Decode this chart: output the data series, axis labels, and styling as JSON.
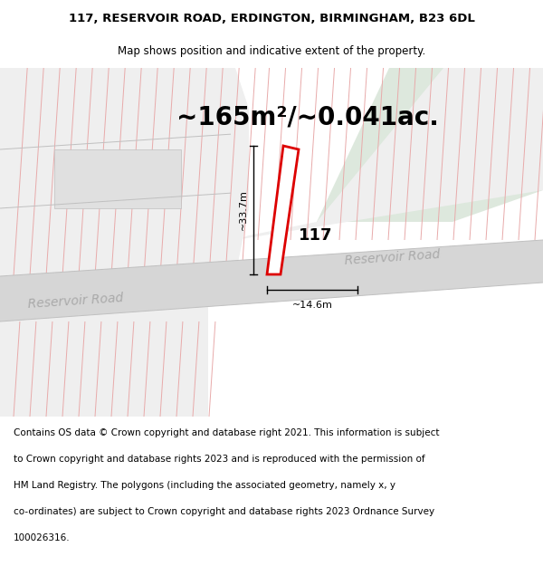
{
  "title_line1": "117, RESERVOIR ROAD, ERDINGTON, BIRMINGHAM, B23 6DL",
  "title_line2": "Map shows position and indicative extent of the property.",
  "area_text": "~165m²/~0.041ac.",
  "property_number": "117",
  "dim_horizontal": "~14.6m",
  "dim_vertical": "~33.7m",
  "road_label1": "Reservoir Road",
  "road_label2": "Reservoir Road",
  "footer_lines": [
    "Contains OS data © Crown copyright and database right 2021. This information is subject",
    "to Crown copyright and database rights 2023 and is reproduced with the permission of",
    "HM Land Registry. The polygons (including the associated geometry, namely x, y",
    "co-ordinates) are subject to Crown copyright and database rights 2023 Ordnance Survey",
    "100026316."
  ],
  "map_bg": "#f7f7f7",
  "road_color": "#d6d6d6",
  "plot_bg": "#efefef",
  "hatch_line_color": "#e8aaaa",
  "property_fill": "#ffffff",
  "property_stroke": "#dd0000",
  "green_area": "#dde8dd",
  "title_fontsize": 9.5,
  "subtitle_fontsize": 8.5,
  "area_fontsize": 20,
  "footer_fontsize": 7.5,
  "road_label_color": "#aaaaaa",
  "road_label_fontsize": 10
}
